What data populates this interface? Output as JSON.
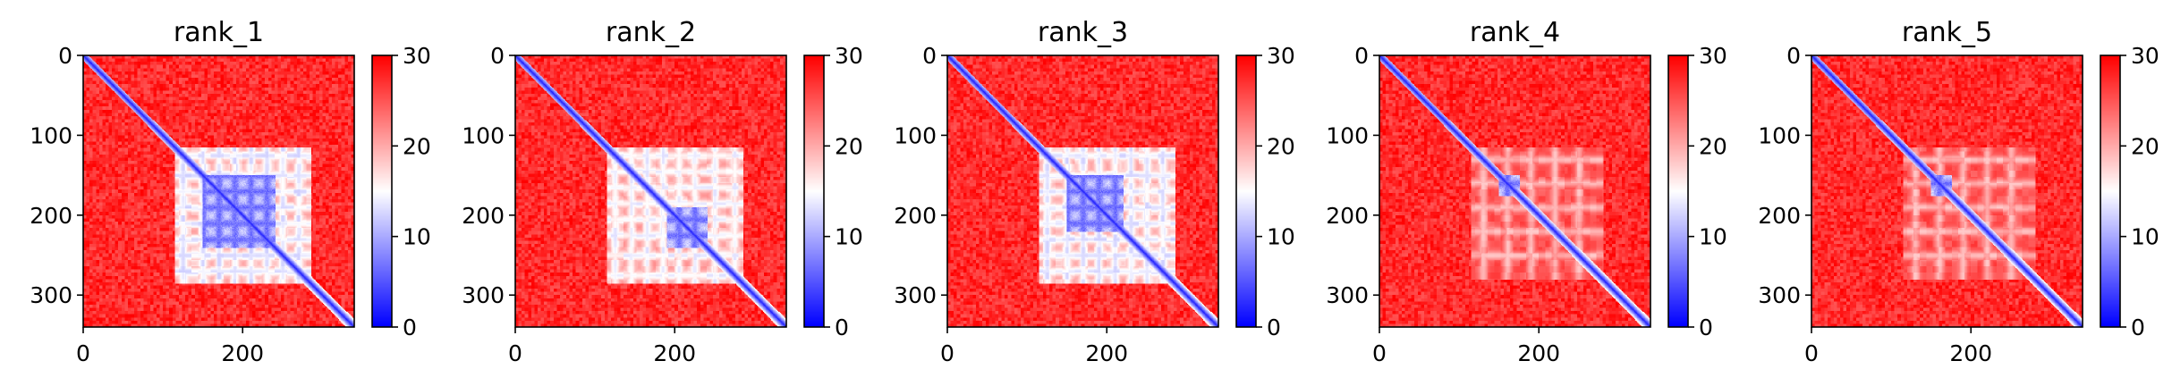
{
  "chart_data": [
    {
      "type": "heatmap",
      "title": "rank_1",
      "xlim": [
        0,
        340
      ],
      "ylim": [
        340,
        0
      ],
      "x_ticks": [
        0,
        200
      ],
      "y_ticks": [
        0,
        100,
        200,
        300
      ],
      "colorbar": {
        "range": [
          0,
          30
        ],
        "ticks": [
          0,
          10,
          20,
          30
        ],
        "colormap": "bwr",
        "low_color": "#0000ff",
        "mid_color": "#ffffff",
        "high_color": "#ff0000"
      },
      "pattern": {
        "matrix_size": 340,
        "diagonal_value": 2,
        "background_value": 28,
        "block_range": [
          115,
          285
        ],
        "block_value": 12,
        "grid_positions": [
          125,
          150,
          170,
          190,
          210,
          230,
          250,
          270
        ],
        "blue_core": [
          [
            150,
            240
          ]
        ]
      }
    },
    {
      "type": "heatmap",
      "title": "rank_2",
      "xlim": [
        0,
        340
      ],
      "ylim": [
        340,
        0
      ],
      "x_ticks": [
        0,
        200
      ],
      "y_ticks": [
        0,
        100,
        200,
        300
      ],
      "colorbar": {
        "range": [
          0,
          30
        ],
        "ticks": [
          0,
          10,
          20,
          30
        ],
        "colormap": "bwr",
        "low_color": "#0000ff",
        "mid_color": "#ffffff",
        "high_color": "#ff0000"
      },
      "pattern": {
        "matrix_size": 340,
        "diagonal_value": 2,
        "background_value": 28,
        "block_range": [
          115,
          285
        ],
        "block_value": 13,
        "grid_positions": [
          125,
          145,
          165,
          185,
          205,
          225,
          250,
          275
        ],
        "blue_core": [
          [
            190,
            240
          ]
        ]
      }
    },
    {
      "type": "heatmap",
      "title": "rank_3",
      "xlim": [
        0,
        340
      ],
      "ylim": [
        340,
        0
      ],
      "x_ticks": [
        0,
        200
      ],
      "y_ticks": [
        0,
        100,
        200,
        300
      ],
      "colorbar": {
        "range": [
          0,
          30
        ],
        "ticks": [
          0,
          10,
          20,
          30
        ],
        "colormap": "bwr",
        "low_color": "#0000ff",
        "mid_color": "#ffffff",
        "high_color": "#ff0000"
      },
      "pattern": {
        "matrix_size": 340,
        "diagonal_value": 2,
        "background_value": 28,
        "block_range": [
          115,
          285
        ],
        "block_value": 12,
        "grid_positions": [
          125,
          150,
          170,
          190,
          210,
          230,
          250,
          270
        ],
        "blue_core": [
          [
            150,
            220
          ]
        ]
      }
    },
    {
      "type": "heatmap",
      "title": "rank_4",
      "xlim": [
        0,
        340
      ],
      "ylim": [
        340,
        0
      ],
      "x_ticks": [
        0,
        200
      ],
      "y_ticks": [
        0,
        100,
        200,
        300
      ],
      "colorbar": {
        "range": [
          0,
          30
        ],
        "ticks": [
          0,
          10,
          20,
          30
        ],
        "colormap": "bwr",
        "low_color": "#0000ff",
        "mid_color": "#ffffff",
        "high_color": "#ff0000"
      },
      "pattern": {
        "matrix_size": 340,
        "diagonal_value": 2,
        "background_value": 28,
        "block_range": [
          115,
          280
        ],
        "block_value": 18,
        "grid_positions": [
          130,
          160,
          190,
          220,
          250
        ],
        "blue_core": [
          [
            150,
            175
          ]
        ]
      }
    },
    {
      "type": "heatmap",
      "title": "rank_5",
      "xlim": [
        0,
        340
      ],
      "ylim": [
        340,
        0
      ],
      "x_ticks": [
        0,
        200
      ],
      "y_ticks": [
        0,
        100,
        200,
        300
      ],
      "colorbar": {
        "range": [
          0,
          30
        ],
        "ticks": [
          0,
          10,
          20,
          30
        ],
        "colormap": "bwr",
        "low_color": "#0000ff",
        "mid_color": "#ffffff",
        "high_color": "#ff0000"
      },
      "pattern": {
        "matrix_size": 340,
        "diagonal_value": 2,
        "background_value": 28,
        "block_range": [
          115,
          280
        ],
        "block_value": 18,
        "grid_positions": [
          130,
          160,
          190,
          220,
          250
        ],
        "blue_core": [
          [
            150,
            175
          ]
        ]
      }
    }
  ]
}
